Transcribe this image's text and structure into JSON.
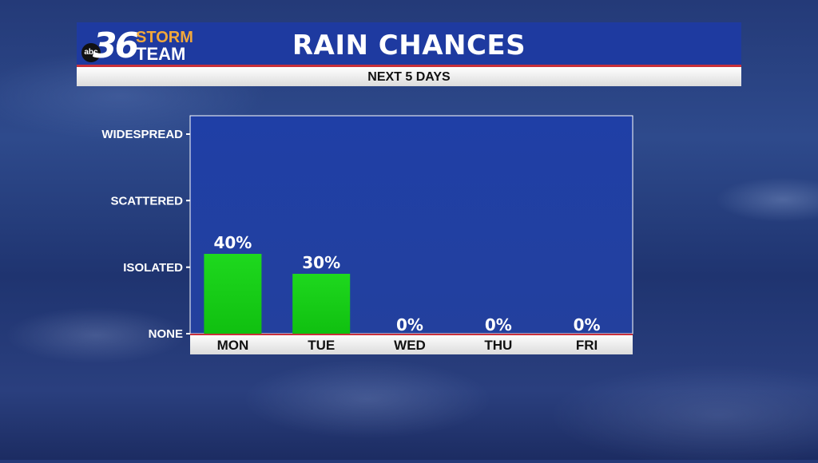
{
  "header": {
    "title": "RAIN CHANCES",
    "subtitle": "NEXT 5 DAYS"
  },
  "logo": {
    "network": "abc",
    "number": "36",
    "word1": "STORM",
    "word2": "TEAM"
  },
  "colors": {
    "header_bg": "#1e3aa0",
    "accent_red": "#c8303a",
    "plot_bg": "#1f3fa6",
    "bar_green": "#1ed81e",
    "logo_orange": "#f2a83a"
  },
  "chart_data": {
    "type": "bar",
    "title": "RAIN CHANCES",
    "subtitle": "NEXT 5 DAYS",
    "categories": [
      "MON",
      "TUE",
      "WED",
      "THU",
      "FRI"
    ],
    "values": [
      40,
      30,
      0,
      0,
      0
    ],
    "value_labels": [
      "40%",
      "30%",
      "0%",
      "0%",
      "0%"
    ],
    "ylim": [
      0,
      100
    ],
    "y_ticks": [
      {
        "value": 0,
        "label": "NONE"
      },
      {
        "value": 33.3,
        "label": "ISOLATED"
      },
      {
        "value": 66.7,
        "label": "SCATTERED"
      },
      {
        "value": 100,
        "label": "WIDESPREAD"
      }
    ],
    "grid": false,
    "legend": "none"
  }
}
